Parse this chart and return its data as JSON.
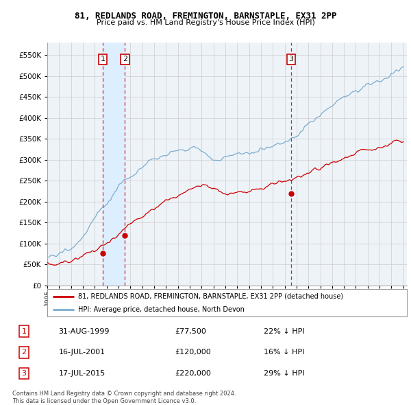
{
  "title1": "81, REDLANDS ROAD, FREMINGTON, BARNSTAPLE, EX31 2PP",
  "title2": "Price paid vs. HM Land Registry's House Price Index (HPI)",
  "property_label": "81, REDLANDS ROAD, FREMINGTON, BARNSTAPLE, EX31 2PP (detached house)",
  "hpi_label": "HPI: Average price, detached house, North Devon",
  "transactions": [
    {
      "num": 1,
      "date": "31-AUG-1999",
      "price": "£77,500",
      "pct": "22% ↓ HPI",
      "year": 1999.67,
      "value": 77500
    },
    {
      "num": 2,
      "date": "16-JUL-2001",
      "price": "£120,000",
      "pct": "16% ↓ HPI",
      "year": 2001.54,
      "value": 120000
    },
    {
      "num": 3,
      "date": "17-JUL-2015",
      "price": "£220,000",
      "pct": "29% ↓ HPI",
      "year": 2015.54,
      "value": 220000
    }
  ],
  "copyright_text": "Contains HM Land Registry data © Crown copyright and database right 2024.\nThis data is licensed under the Open Government Licence v3.0.",
  "property_color": "#cc0000",
  "hpi_color": "#7aadcf",
  "shade_color": "#ddeeff",
  "background_color": "#eef3f8",
  "grid_color": "#cccccc",
  "ylim": [
    0,
    580000
  ],
  "yticks": [
    0,
    50000,
    100000,
    150000,
    200000,
    250000,
    300000,
    350000,
    400000,
    450000,
    500000,
    550000
  ],
  "year_start": 1995,
  "year_end": 2025
}
